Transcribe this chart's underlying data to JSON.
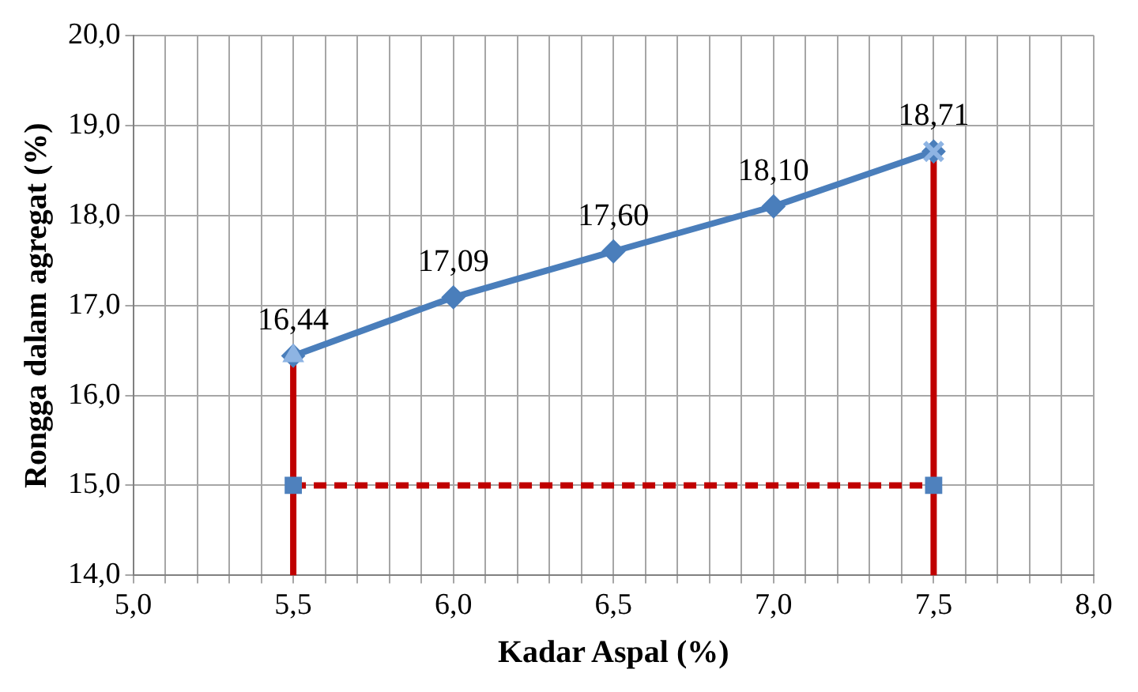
{
  "chart_data": {
    "type": "line",
    "xlabel": "Kadar Aspal (%)",
    "ylabel": "Rongga dalam agregat (%)",
    "xlim": [
      5,
      8
    ],
    "ylim": [
      14,
      20
    ],
    "xticks": [
      {
        "value": 5,
        "label": "5,0"
      },
      {
        "value": 5.1,
        "label": null
      },
      {
        "value": 5.2,
        "label": null
      },
      {
        "value": 5.3,
        "label": null
      },
      {
        "value": 5.4,
        "label": null
      },
      {
        "value": 5.5,
        "label": "5,5"
      },
      {
        "value": 5.6,
        "label": null
      },
      {
        "value": 5.7,
        "label": null
      },
      {
        "value": 5.8,
        "label": null
      },
      {
        "value": 5.9,
        "label": null
      },
      {
        "value": 6,
        "label": "6,0"
      },
      {
        "value": 6.1,
        "label": null
      },
      {
        "value": 6.2,
        "label": null
      },
      {
        "value": 6.3,
        "label": null
      },
      {
        "value": 6.4,
        "label": null
      },
      {
        "value": 6.5,
        "label": "6,5"
      },
      {
        "value": 6.6,
        "label": null
      },
      {
        "value": 6.7,
        "label": null
      },
      {
        "value": 6.8,
        "label": null
      },
      {
        "value": 6.9,
        "label": null
      },
      {
        "value": 7,
        "label": "7,0"
      },
      {
        "value": 7.1,
        "label": null
      },
      {
        "value": 7.2,
        "label": null
      },
      {
        "value": 7.3,
        "label": null
      },
      {
        "value": 7.4,
        "label": null
      },
      {
        "value": 7.5,
        "label": "7,5"
      },
      {
        "value": 7.6,
        "label": null
      },
      {
        "value": 7.7,
        "label": null
      },
      {
        "value": 7.8,
        "label": null
      },
      {
        "value": 7.9,
        "label": null
      },
      {
        "value": 8,
        "label": "8,0"
      }
    ],
    "yticks": [
      {
        "value": 14,
        "label": "14,0"
      },
      {
        "value": 15,
        "label": "15,0"
      },
      {
        "value": 16,
        "label": "16,0"
      },
      {
        "value": 17,
        "label": "17,0"
      },
      {
        "value": 18,
        "label": "18,0"
      },
      {
        "value": 19,
        "label": "19,0"
      },
      {
        "value": 20,
        "label": "20,0"
      }
    ],
    "grid": true,
    "legend": false,
    "series": [
      {
        "type": "line",
        "color": "#c00000",
        "x": [
          5.5,
          5.5
        ],
        "values": [
          14,
          16.44
        ],
        "marker": "none",
        "line_style": "solid"
      },
      {
        "type": "line",
        "color": "#c00000",
        "x": [
          7.5,
          7.5
        ],
        "values": [
          14,
          18.71
        ],
        "marker": "none",
        "line_style": "solid"
      },
      {
        "type": "line",
        "color": "#c00000",
        "x": [
          5.5,
          7.5
        ],
        "values": [
          15,
          15
        ],
        "marker": "none",
        "line_style": "dashed"
      },
      {
        "type": "scatter",
        "color": "#4f81bd",
        "x": [
          5.5,
          7.5
        ],
        "values": [
          15,
          15
        ],
        "marker": "square"
      },
      {
        "type": "line",
        "color": "#4a7ebb",
        "x": [
          5.5,
          6,
          6.5,
          7,
          7.5
        ],
        "values": [
          16.44,
          17.09,
          17.6,
          18.1,
          18.71
        ],
        "value_labels": [
          "16,44",
          "17,09",
          "17,60",
          "18,10",
          "18,71"
        ],
        "marker": "diamond",
        "line_style": "solid"
      },
      {
        "type": "scatter",
        "color": "#8eb4e3",
        "x": [
          5.5
        ],
        "values": [
          16.44
        ],
        "marker": "triangle"
      },
      {
        "type": "scatter",
        "color": "#8eb4e3",
        "x": [
          7.5
        ],
        "values": [
          18.71
        ],
        "marker": "cross"
      }
    ]
  }
}
